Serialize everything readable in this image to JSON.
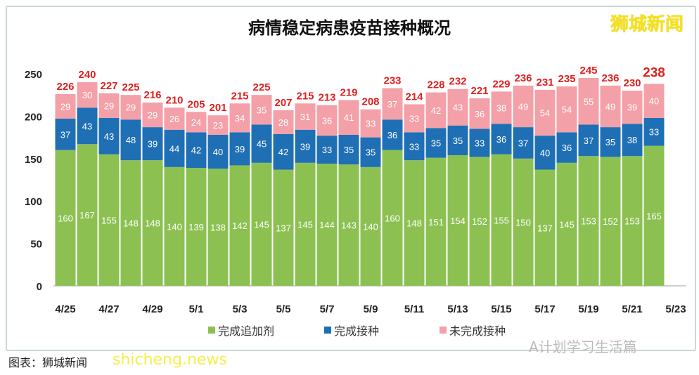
{
  "title": "病情稳定病患疫苗接种概况",
  "logo": "狮城新闻",
  "source": "图表：狮城新闻",
  "watermark": "shicheng.news",
  "wechat": "A计划学习生活篇",
  "chart_data": {
    "type": "stacked-bar",
    "title": "病情稳定病患疫苗接种概况",
    "categories": [
      "4/25",
      "4/26",
      "4/27",
      "4/28",
      "4/29",
      "4/30",
      "5/1",
      "5/2",
      "5/3",
      "5/4",
      "5/5",
      "5/6",
      "5/7",
      "5/8",
      "5/9",
      "5/10",
      "5/11",
      "5/12",
      "5/13",
      "5/14",
      "5/15",
      "5/16",
      "5/17",
      "5/18",
      "5/19",
      "5/20",
      "5/21",
      "5/22"
    ],
    "x_tick_labels": [
      "4/25",
      "4/27",
      "4/29",
      "5/1",
      "5/3",
      "5/5",
      "5/7",
      "5/9",
      "5/11",
      "5/13",
      "5/15",
      "5/17",
      "5/19",
      "5/21",
      "5/23"
    ],
    "y_ticks": [
      0,
      50,
      100,
      150,
      200,
      250
    ],
    "ylim": [
      0,
      250
    ],
    "grid": false,
    "legend_position": "bottom",
    "series": [
      {
        "name": "完成追加剂",
        "color": "#8cc152",
        "values": [
          160,
          167,
          155,
          148,
          148,
          140,
          139,
          138,
          142,
          145,
          137,
          145,
          144,
          143,
          140,
          160,
          148,
          151,
          154,
          152,
          155,
          150,
          137,
          145,
          153,
          152,
          153,
          165
        ]
      },
      {
        "name": "完成接种",
        "color": "#1f6fb5",
        "values": [
          37,
          43,
          43,
          48,
          39,
          44,
          42,
          40,
          39,
          45,
          42,
          39,
          33,
          35,
          35,
          36,
          33,
          35,
          35,
          33,
          36,
          37,
          40,
          36,
          37,
          35,
          38,
          33
        ]
      },
      {
        "name": "未完成接种",
        "color": "#f4a0a8",
        "values": [
          29,
          30,
          29,
          29,
          29,
          26,
          24,
          23,
          34,
          35,
          28,
          31,
          36,
          41,
          33,
          37,
          33,
          42,
          43,
          36,
          38,
          49,
          54,
          54,
          55,
          49,
          39,
          40
        ]
      }
    ],
    "totals": [
      226,
      240,
      227,
      225,
      216,
      210,
      205,
      201,
      215,
      225,
      207,
      215,
      213,
      219,
      208,
      233,
      214,
      228,
      232,
      221,
      229,
      236,
      231,
      235,
      245,
      236,
      230,
      238
    ],
    "total_label_color": "#e02020"
  }
}
